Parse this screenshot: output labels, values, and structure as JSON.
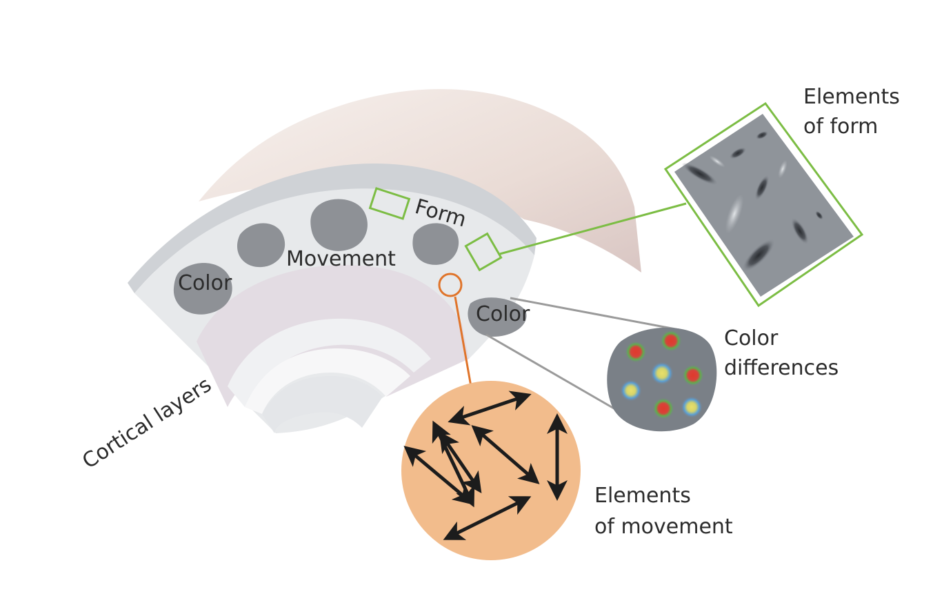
{
  "labels": {
    "form": "Form",
    "movement": "Movement",
    "color_left": "Color",
    "color_right": "Color",
    "cortical_layers": "Cortical layers",
    "elements_of_form": [
      "Elements",
      "of form"
    ],
    "color_differences": [
      "Color",
      "differences"
    ],
    "elements_of_movement": [
      "Elements",
      "of movement"
    ]
  },
  "colors": {
    "background": "#ffffff",
    "cortex_top": "#ecdfd9",
    "cortex_light": "#e7e9eb",
    "layer_purple": "#e3dce3",
    "blob": "#8e9196",
    "form_frame": "#7cbd44",
    "movement_circle": "#f2bc8c",
    "movement_marker": "#e0742a",
    "color_connector": "#9a9a9a",
    "arrow": "#1c1c1c"
  }
}
